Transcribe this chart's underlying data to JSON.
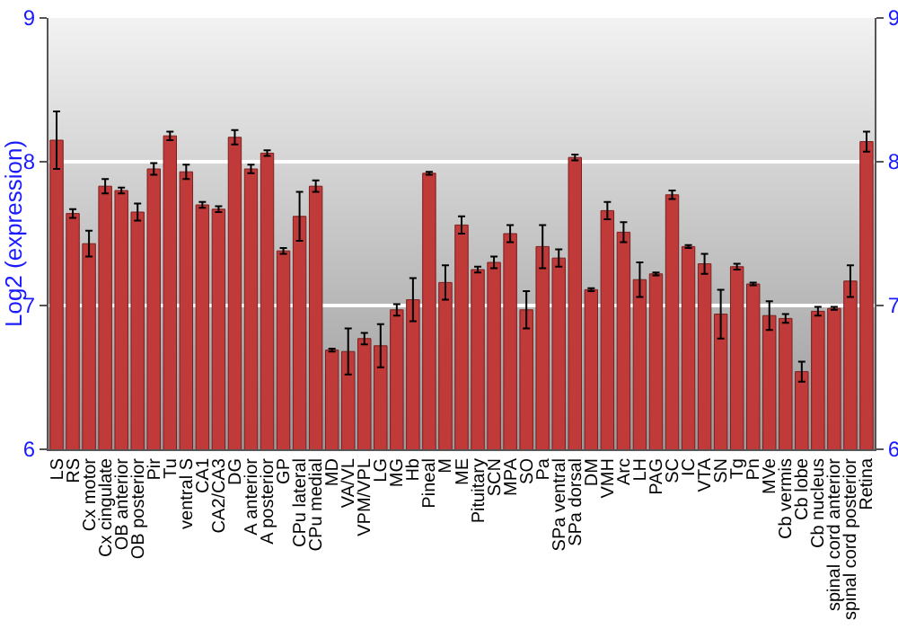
{
  "chart_data": {
    "type": "bar",
    "ylabel": "Log2 (expression)",
    "categories": [
      "LS",
      "RS",
      "Cx motor",
      "Cx cingulate",
      "OB anterior",
      "OB posterior",
      "Pir",
      "Tu",
      "ventral S",
      "CA1",
      "CA2/CA3",
      "DG",
      "A anterior",
      "A posterior",
      "GP",
      "CPu lateral",
      "CPu medial",
      "MD",
      "VA/VL",
      "VPM/VPL",
      "LG",
      "MG",
      "Hb",
      "Pineal",
      "M",
      "ME",
      "Pituitary",
      "SCN",
      "MPA",
      "SO",
      "Pa",
      "SPa ventral",
      "SPa dorsal",
      "DM",
      "VMH",
      "Arc",
      "LH",
      "PAG",
      "SC",
      "IC",
      "VTA",
      "SN",
      "Tg",
      "Pn",
      "MVe",
      "Cb vermis",
      "Cb lobe",
      "Cb nucleus",
      "spinal cord anterior",
      "spinal cord posterior",
      "Retina"
    ],
    "values": [
      8.15,
      7.64,
      7.43,
      7.83,
      7.8,
      7.65,
      7.95,
      8.18,
      7.93,
      7.7,
      7.67,
      8.17,
      7.95,
      8.06,
      7.38,
      7.62,
      7.83,
      6.69,
      6.68,
      6.77,
      6.72,
      6.97,
      7.04,
      7.92,
      7.16,
      7.56,
      7.25,
      7.3,
      7.5,
      6.97,
      7.41,
      7.33,
      8.03,
      7.11,
      7.66,
      7.51,
      7.18,
      7.22,
      7.77,
      7.41,
      7.29,
      6.94,
      7.27,
      7.15,
      6.93,
      6.91,
      6.54,
      6.96,
      6.98,
      7.17,
      8.14
    ],
    "errors": [
      0.2,
      0.03,
      0.09,
      0.05,
      0.02,
      0.06,
      0.04,
      0.03,
      0.05,
      0.02,
      0.02,
      0.05,
      0.03,
      0.02,
      0.02,
      0.17,
      0.04,
      0.01,
      0.16,
      0.04,
      0.15,
      0.04,
      0.15,
      0.01,
      0.12,
      0.06,
      0.02,
      0.04,
      0.06,
      0.13,
      0.15,
      0.06,
      0.02,
      0.01,
      0.06,
      0.07,
      0.12,
      0.01,
      0.03,
      0.01,
      0.07,
      0.17,
      0.02,
      0.01,
      0.1,
      0.03,
      0.07,
      0.03,
      0.01,
      0.11,
      0.07
    ],
    "color": "#c03a3a",
    "ylim": [
      6,
      9
    ],
    "yticks": [
      6,
      7,
      8,
      9
    ],
    "y2lim": [
      6,
      9
    ],
    "y2ticks": [
      6,
      7,
      8,
      9
    ],
    "grid": "y",
    "legend": false
  }
}
